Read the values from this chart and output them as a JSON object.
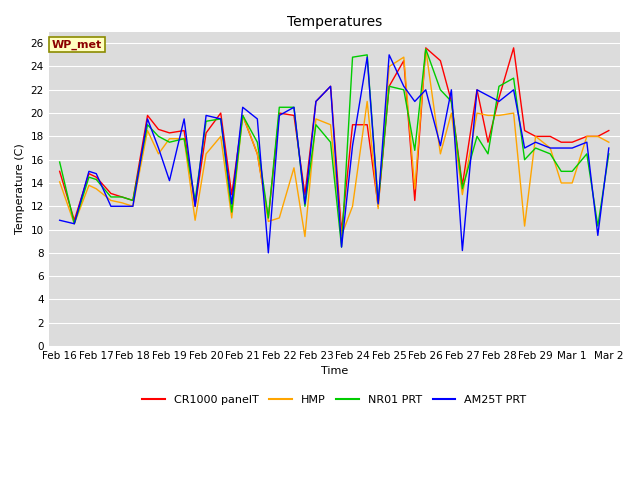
{
  "title": "Temperatures",
  "xlabel": "Time",
  "ylabel": "Temperature (C)",
  "annotation_text": "WP_met",
  "annotation_color": "#8B0000",
  "annotation_bg": "#FFFFC0",
  "annotation_border": "#8B8B00",
  "ylim": [
    0,
    27
  ],
  "yticks": [
    0,
    2,
    4,
    6,
    8,
    10,
    12,
    14,
    16,
    18,
    20,
    22,
    24,
    26
  ],
  "x_labels": [
    "Feb 16",
    "Feb 17",
    "Feb 18",
    "Feb 19",
    "Feb 20",
    "Feb 21",
    "Feb 22",
    "Feb 23",
    "Feb 24",
    "Feb 25",
    "Feb 26",
    "Feb 27",
    "Feb 28",
    "Feb 29",
    "Mar 1",
    "Mar 2"
  ],
  "colors": {
    "CR1000 panelT": "#FF0000",
    "HMP": "#FFA500",
    "NR01 PRT": "#00CC00",
    "AM25T PRT": "#0000FF"
  },
  "bg_color": "#DCDCDC",
  "grid_color": "#FFFFFF",
  "fig_bg": "#FFFFFF",
  "x_positions": [
    0,
    0.4,
    0.8,
    1.0,
    1.4,
    1.7,
    2.0,
    2.4,
    2.7,
    3.0,
    3.4,
    3.7,
    4.0,
    4.4,
    4.7,
    5.0,
    5.4,
    5.7,
    6.0,
    6.4,
    6.7,
    7.0,
    7.4,
    7.7,
    8.0,
    8.4,
    8.7,
    9.0,
    9.4,
    9.7,
    10.0,
    10.4,
    10.7,
    11.0,
    11.4,
    11.7,
    12.0,
    12.4,
    12.7,
    13.0,
    13.4,
    13.7,
    14.0,
    14.4,
    14.7,
    15.0
  ],
  "cr1000": [
    15.0,
    10.8,
    14.8,
    14.5,
    13.1,
    12.8,
    12.5,
    19.8,
    18.6,
    18.3,
    18.5,
    12.0,
    18.3,
    20.0,
    13.0,
    19.8,
    16.5,
    11.0,
    20.0,
    19.8,
    13.0,
    21.0,
    22.3,
    9.8,
    19.0,
    19.0,
    12.0,
    22.3,
    24.5,
    12.5,
    25.6,
    24.5,
    21.0,
    13.8,
    22.0,
    17.5,
    21.3,
    25.6,
    18.5,
    18.0,
    18.0,
    17.5,
    17.5,
    18.0,
    18.0,
    18.5
  ],
  "hmp": [
    14.1,
    10.5,
    13.8,
    13.5,
    12.5,
    12.3,
    12.0,
    18.5,
    16.5,
    17.8,
    17.8,
    10.8,
    16.5,
    18.0,
    11.0,
    19.8,
    16.5,
    10.7,
    11.0,
    15.3,
    9.4,
    19.5,
    19.0,
    9.5,
    12.0,
    21.0,
    11.8,
    24.0,
    24.8,
    13.5,
    25.5,
    16.5,
    20.0,
    13.0,
    20.0,
    19.8,
    19.8,
    20.0,
    10.3,
    18.0,
    17.0,
    14.0,
    14.0,
    18.0,
    18.0,
    17.5
  ],
  "nr01": [
    15.8,
    10.5,
    14.5,
    14.3,
    12.8,
    12.8,
    12.5,
    19.0,
    18.0,
    17.5,
    17.8,
    12.5,
    19.3,
    19.5,
    11.5,
    19.8,
    17.5,
    11.0,
    20.5,
    20.5,
    12.0,
    19.0,
    17.5,
    8.5,
    24.8,
    25.0,
    12.3,
    22.3,
    22.0,
    16.8,
    25.5,
    22.0,
    21.0,
    13.5,
    18.0,
    16.5,
    22.3,
    23.0,
    16.0,
    17.0,
    16.5,
    15.0,
    15.0,
    16.5,
    10.3,
    16.5
  ],
  "am25t": [
    10.8,
    10.5,
    15.0,
    14.8,
    12.0,
    12.0,
    12.0,
    19.5,
    17.0,
    14.2,
    19.5,
    12.0,
    19.8,
    19.5,
    12.2,
    20.5,
    19.5,
    8.0,
    19.8,
    20.5,
    12.2,
    21.0,
    22.3,
    8.5,
    17.2,
    24.8,
    12.2,
    25.0,
    22.3,
    21.0,
    22.0,
    17.2,
    22.0,
    8.2,
    22.0,
    21.5,
    21.0,
    22.0,
    17.0,
    17.5,
    17.0,
    17.0,
    17.0,
    17.5,
    9.5,
    17.0
  ]
}
